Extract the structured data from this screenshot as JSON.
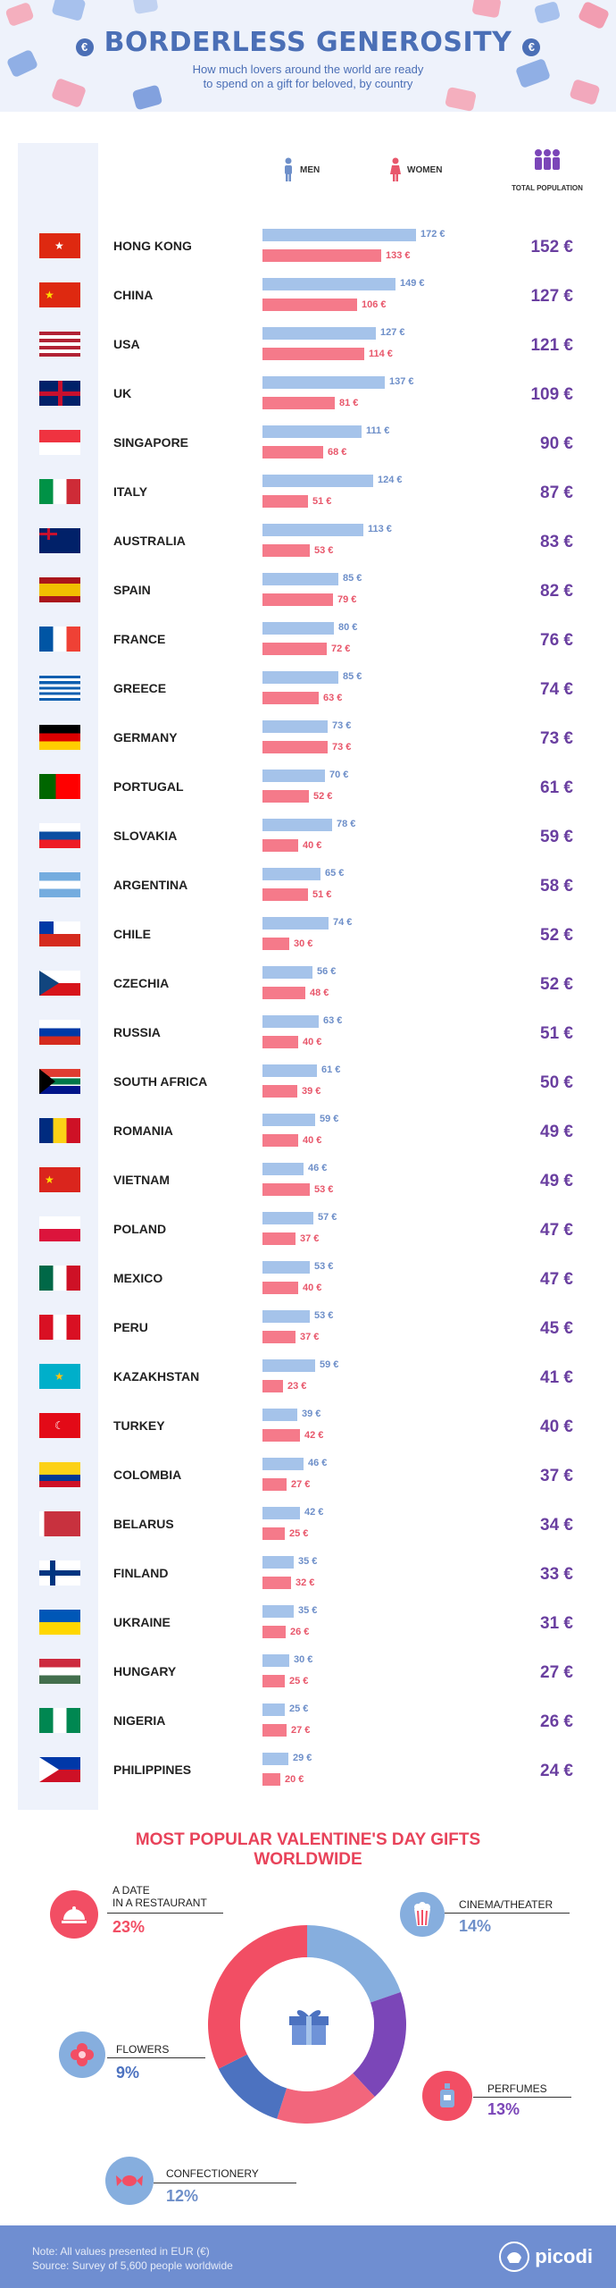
{
  "header": {
    "title": "BORDERLESS GENEROSITY",
    "subtitle_line1": "How much lovers around the world are ready",
    "subtitle_line2": "to spend on a gift for beloved, by country"
  },
  "legend": {
    "men": "MEN",
    "women": "WOMEN",
    "total": "TOTAL POPULATION"
  },
  "colors": {
    "men": "#a5c3ea",
    "women": "#f57a8a",
    "total": "#6a3fa0",
    "title": "#4b6fb6"
  },
  "chart_data": {
    "type": "bar",
    "unit": "€",
    "series": [
      {
        "name": "MEN",
        "values": [
          172,
          149,
          127,
          137,
          111,
          124,
          113,
          85,
          80,
          85,
          73,
          70,
          78,
          65,
          74,
          56,
          63,
          61,
          59,
          46,
          57,
          53,
          53,
          59,
          39,
          46,
          42,
          35,
          35,
          30,
          25,
          29
        ]
      },
      {
        "name": "WOMEN",
        "values": [
          133,
          106,
          114,
          81,
          68,
          51,
          53,
          79,
          72,
          63,
          73,
          52,
          40,
          51,
          30,
          48,
          40,
          39,
          40,
          53,
          37,
          40,
          37,
          23,
          42,
          27,
          25,
          32,
          26,
          25,
          27,
          20
        ]
      },
      {
        "name": "TOTAL POPULATION",
        "values": [
          152,
          127,
          121,
          109,
          90,
          87,
          83,
          82,
          76,
          74,
          73,
          61,
          59,
          58,
          52,
          52,
          51,
          50,
          49,
          49,
          47,
          47,
          45,
          41,
          40,
          37,
          34,
          33,
          31,
          27,
          26,
          24
        ]
      }
    ],
    "categories": [
      "HONG KONG",
      "CHINA",
      "USA",
      "UK",
      "SINGAPORE",
      "ITALY",
      "AUSTRALIA",
      "SPAIN",
      "FRANCE",
      "GREECE",
      "GERMANY",
      "PORTUGAL",
      "SLOVAKIA",
      "ARGENTINA",
      "CHILE",
      "CZECHIA",
      "RUSSIA",
      "SOUTH AFRICA",
      "ROMANIA",
      "VIETNAM",
      "POLAND",
      "MEXICO",
      "PERU",
      "KAZAKHSTAN",
      "TURKEY",
      "COLOMBIA",
      "BELARUS",
      "FINLAND",
      "UKRAINE",
      "HUNGARY",
      "NIGERIA",
      "PHILIPPINES"
    ]
  },
  "gifts": {
    "title_line1": "MOST POPULAR VALENTINE'S DAY GIFTS",
    "title_line2": "WORLDWIDE",
    "chart_data": {
      "type": "pie",
      "slices": [
        {
          "label": "CINEMA/THEATER",
          "value": 14,
          "pct": "14%",
          "color": "#86aede"
        },
        {
          "label": "PERFUMES",
          "value": 13,
          "pct": "13%",
          "color": "#7b46b8"
        },
        {
          "label": "CONFECTIONERY",
          "value": 12,
          "pct": "12%",
          "color": "#f2667c"
        },
        {
          "label": "FLOWERS",
          "value": 9,
          "pct": "9%",
          "color": "#4c72c0"
        },
        {
          "label": "A DATE\nIN A RESTAURANT",
          "value": 23,
          "pct": "23%",
          "color": "#f24e64"
        }
      ]
    }
  },
  "footer": {
    "note": "Note: All values presented in EUR (€)",
    "source": "Source: Survey of 5,600 people worldwide",
    "brand": "picodi"
  }
}
